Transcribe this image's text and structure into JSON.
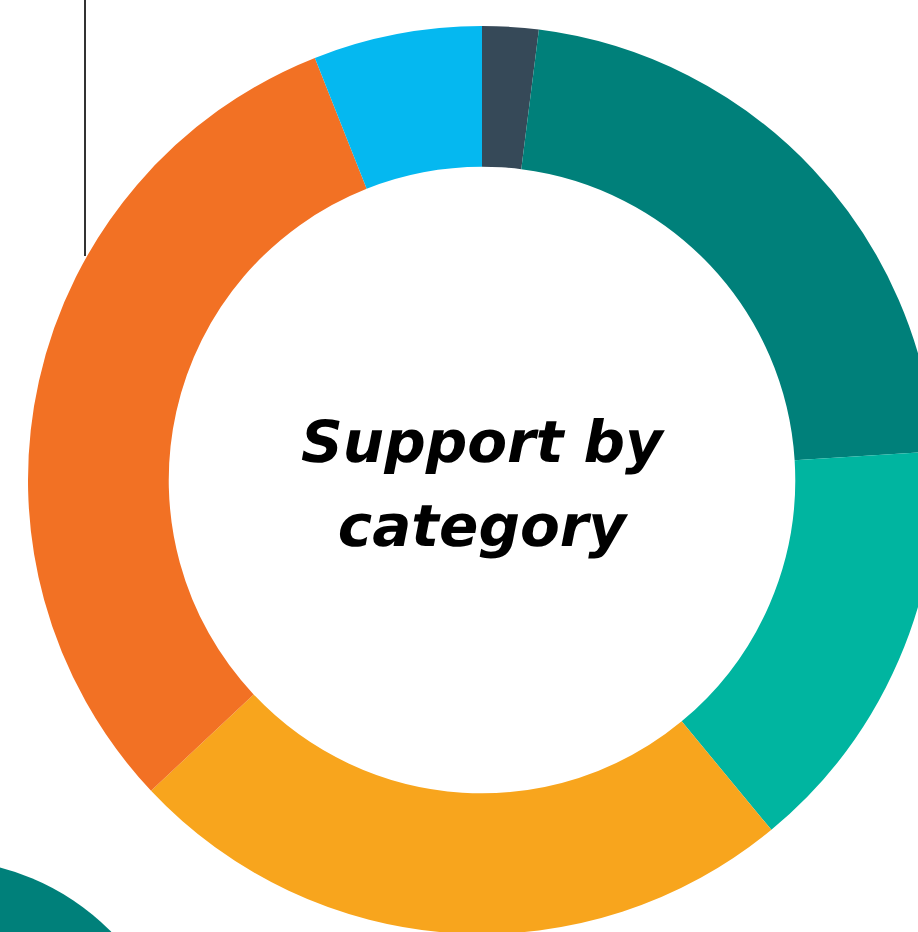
{
  "chart_data": {
    "type": "donut",
    "title": "Support by category",
    "categories": [
      null,
      null,
      null,
      null,
      null,
      null
    ],
    "values": [
      2,
      22,
      15,
      24,
      31,
      6
    ],
    "colors": [
      "#364958",
      "#00807a",
      "#00b5a0",
      "#f8a51d",
      "#f27124",
      "#05b8f0"
    ],
    "legend": false
  }
}
